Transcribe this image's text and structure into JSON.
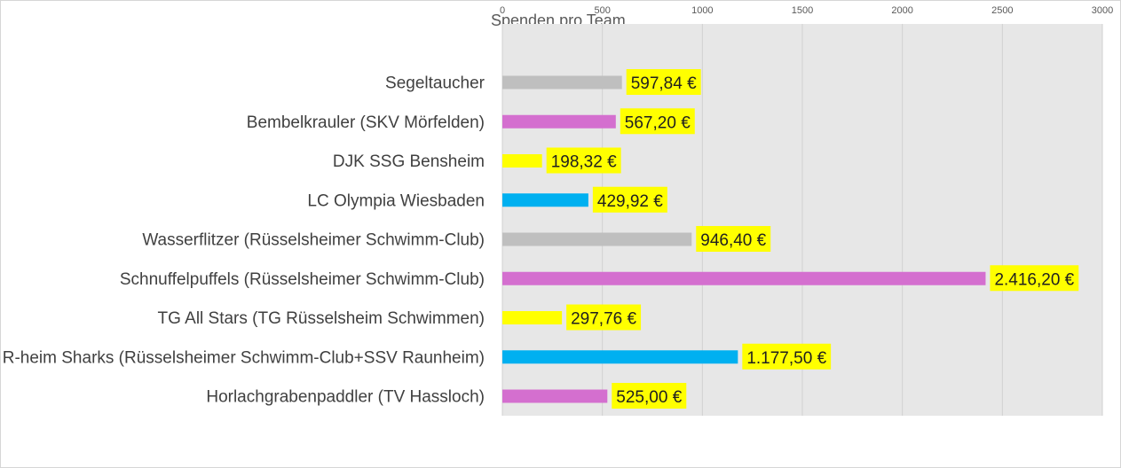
{
  "chart_data": {
    "type": "bar",
    "orientation": "horizontal",
    "title": "Spenden pro Team",
    "xlim": [
      0,
      3000
    ],
    "x_ticks": [
      0,
      500,
      1000,
      1500,
      2000,
      2500,
      3000
    ],
    "x_tick_labels": [
      "0",
      "500",
      "1000",
      "1500",
      "2000",
      "2500",
      "3000"
    ],
    "grid": true,
    "legend": "none",
    "categories": [
      "Segeltaucher",
      "Bembelkrauler (SKV Mörfelden)",
      "DJK SSG Bensheim",
      "LC Olympia Wiesbaden",
      "Wasserflitzer (Rüsselsheimer Schwimm-Club)",
      "Schnuffelpuffels  (Rüsselsheimer Schwimm-Club)",
      "TG All Stars (TG Rüsselsheim Schwimmen)",
      "R-heim Sharks (Rüsselsheimer Schwimm-Club+SSV Raunheim)",
      "Horlachgrabenpaddler (TV Hassloch)"
    ],
    "values": [
      597.84,
      567.2,
      198.32,
      429.92,
      946.4,
      2416.2,
      297.76,
      1177.5,
      525.0
    ],
    "data_labels": [
      "597,84 €",
      "567,20 €",
      "198,32 €",
      "429,92 €",
      "946,40 €",
      "2.416,20 €",
      "297,76 €",
      "1.177,50 €",
      "525,00 €"
    ],
    "bar_colors": [
      "#bfbfbf",
      "#d46fcf",
      "#ffff00",
      "#00b0f0",
      "#bfbfbf",
      "#d46fcf",
      "#ffff00",
      "#00b0f0",
      "#d46fcf"
    ],
    "plot_background": "#e7e7e7",
    "data_label_background": "#ffff00"
  }
}
